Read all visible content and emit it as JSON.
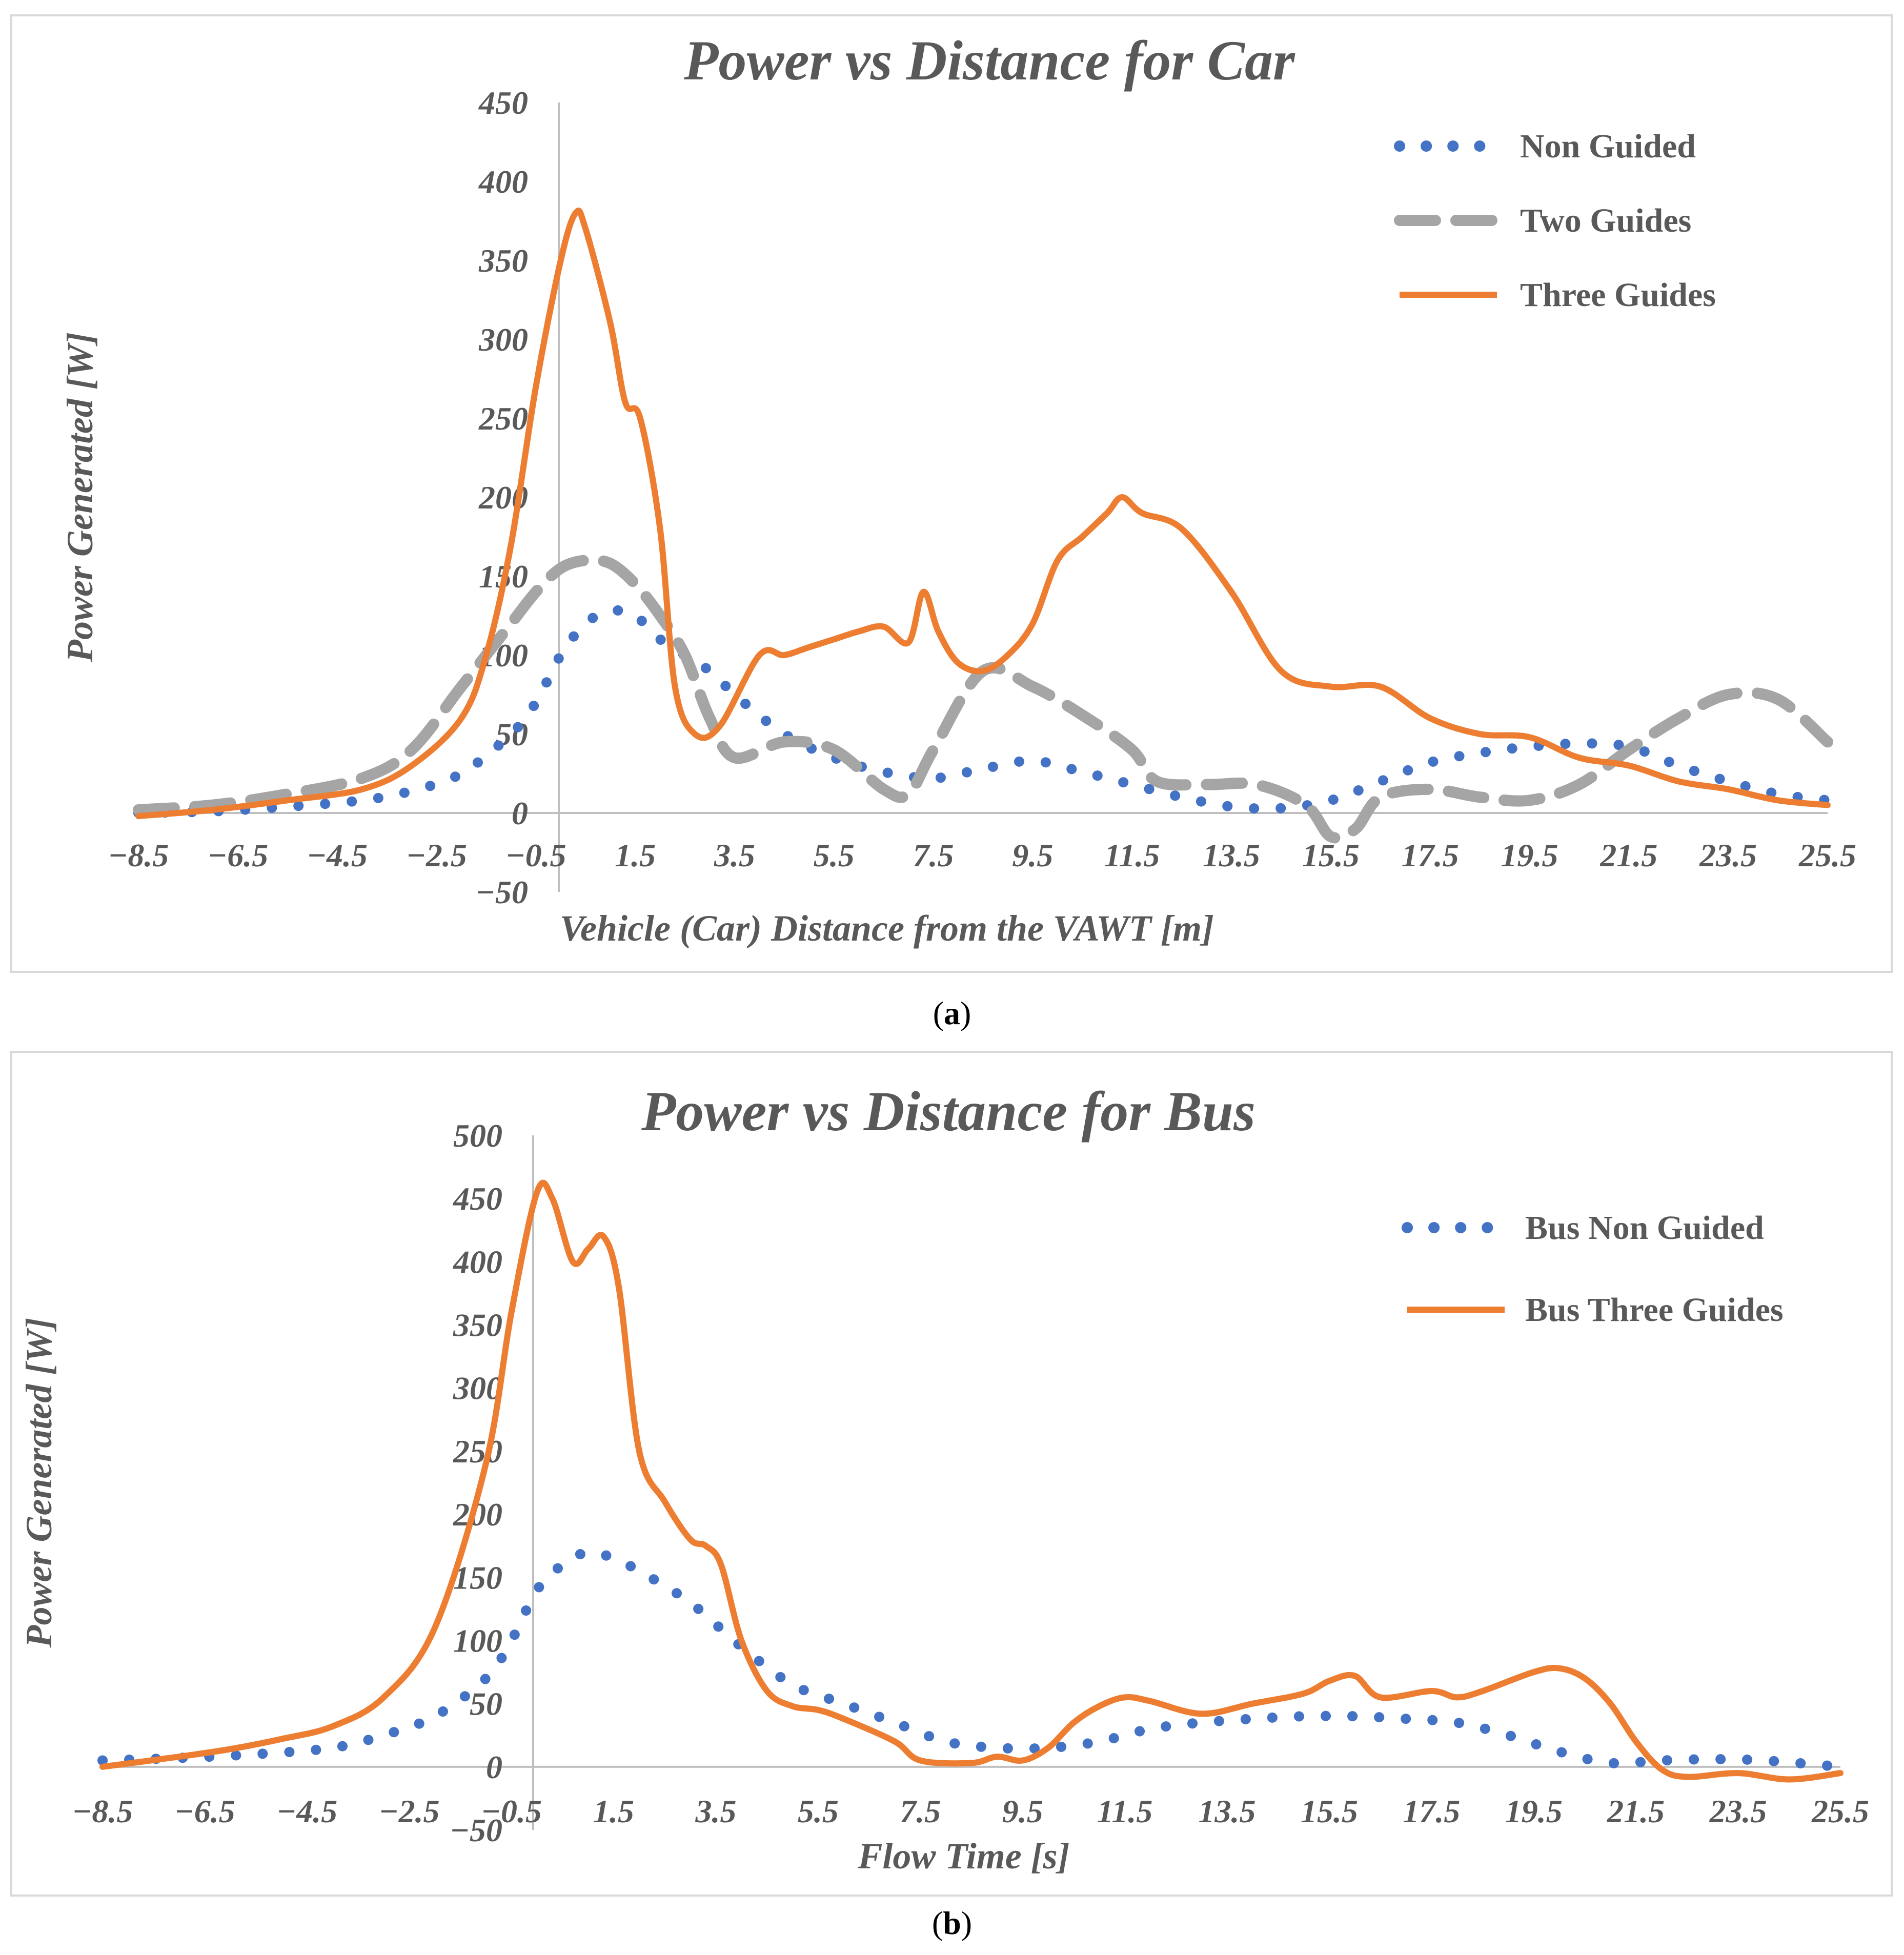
{
  "charts": [
    {
      "caption_letter": "a",
      "colors": {
        "Non Guided": "#4472c4",
        "Two Guides": "#a5a5a5",
        "Three Guides": "#ed7d31"
      },
      "chart_data": {
        "type": "line",
        "title": "Power vs Distance for Car",
        "xlabel": "Vehicle (Car) Distance from the VAWT [m]",
        "ylabel": "Power Generated [W]",
        "xlim": [
          -8.5,
          25.5
        ],
        "ylim": [
          -50,
          450
        ],
        "x_ticks": [
          -8.5,
          -6.5,
          -4.5,
          -2.5,
          -0.5,
          1.5,
          3.5,
          5.5,
          7.5,
          9.5,
          11.5,
          13.5,
          15.5,
          17.5,
          19.5,
          21.5,
          23.5,
          25.5
        ],
        "x_tick_labels": [
          "−8.5",
          "−6.5",
          "−4.5",
          "−2.5",
          "−0.5",
          "1.5",
          "3.5",
          "5.5",
          "7.5",
          "9.5",
          "11.5",
          "13.5",
          "15.5",
          "17.5",
          "19.5",
          "21.5",
          "23.5",
          "25.5"
        ],
        "y_ticks": [
          -50,
          0,
          50,
          100,
          150,
          200,
          250,
          300,
          350,
          400,
          450
        ],
        "y_tick_labels": [
          "−50",
          "0",
          "50",
          "100",
          "150",
          "200",
          "250",
          "300",
          "350",
          "400",
          "450"
        ],
        "legend_position": "top-right",
        "series": [
          {
            "name": "Non Guided",
            "style": "dotted",
            "points": [
              [
                -8.5,
                0
              ],
              [
                -7,
                1
              ],
              [
                -5.5,
                4
              ],
              [
                -4,
                8
              ],
              [
                -3,
                14
              ],
              [
                -2,
                25
              ],
              [
                -1,
                50
              ],
              [
                -0.5,
                70
              ],
              [
                0,
                100
              ],
              [
                0.5,
                120
              ],
              [
                1,
                128
              ],
              [
                1.5,
                125
              ],
              [
                2,
                110
              ],
              [
                3,
                90
              ],
              [
                3.5,
                75
              ],
              [
                4.5,
                50
              ],
              [
                5.5,
                35
              ],
              [
                6.5,
                26
              ],
              [
                7.5,
                22
              ],
              [
                8.5,
                28
              ],
              [
                9.5,
                33
              ],
              [
                10.5,
                26
              ],
              [
                11.5,
                18
              ],
              [
                12.5,
                10
              ],
              [
                13.5,
                4
              ],
              [
                14.5,
                3
              ],
              [
                15.5,
                8
              ],
              [
                16.5,
                20
              ],
              [
                17.5,
                32
              ],
              [
                18.5,
                38
              ],
              [
                19.5,
                42
              ],
              [
                20.5,
                44
              ],
              [
                21.5,
                42
              ],
              [
                22.5,
                30
              ],
              [
                23.5,
                20
              ],
              [
                24.5,
                12
              ],
              [
                25.5,
                8
              ]
            ]
          },
          {
            "name": "Two Guides",
            "style": "dashed",
            "points": [
              [
                -8.5,
                2
              ],
              [
                -7,
                5
              ],
              [
                -5.5,
                12
              ],
              [
                -4,
                22
              ],
              [
                -3,
                40
              ],
              [
                -2,
                80
              ],
              [
                -1,
                120
              ],
              [
                -0.5,
                140
              ],
              [
                0,
                155
              ],
              [
                0.5,
                160
              ],
              [
                1,
                158
              ],
              [
                1.5,
                145
              ],
              [
                2,
                125
              ],
              [
                2.5,
                100
              ],
              [
                3,
                60
              ],
              [
                3.5,
                35
              ],
              [
                4.5,
                45
              ],
              [
                5.5,
                40
              ],
              [
                6.5,
                15
              ],
              [
                7,
                12
              ],
              [
                7.5,
                40
              ],
              [
                8.5,
                90
              ],
              [
                9.5,
                80
              ],
              [
                10.5,
                62
              ],
              [
                11.5,
                40
              ],
              [
                12,
                20
              ],
              [
                13,
                18
              ],
              [
                14,
                18
              ],
              [
                15,
                5
              ],
              [
                15.5,
                -15
              ],
              [
                16,
                -10
              ],
              [
                16.5,
                10
              ],
              [
                17.5,
                15
              ],
              [
                18.5,
                10
              ],
              [
                19.5,
                8
              ],
              [
                20.5,
                18
              ],
              [
                21.5,
                40
              ],
              [
                22.5,
                60
              ],
              [
                23.5,
                75
              ],
              [
                24.5,
                72
              ],
              [
                25.5,
                45
              ]
            ]
          },
          {
            "name": "Three Guides",
            "style": "solid",
            "points": [
              [
                -8.5,
                -2
              ],
              [
                -7,
                2
              ],
              [
                -5.5,
                8
              ],
              [
                -4,
                15
              ],
              [
                -3,
                30
              ],
              [
                -2,
                60
              ],
              [
                -1.5,
                100
              ],
              [
                -1,
                170
              ],
              [
                -0.5,
                270
              ],
              [
                0,
                350
              ],
              [
                0.3,
                380
              ],
              [
                0.5,
                370
              ],
              [
                1,
                310
              ],
              [
                1.3,
                260
              ],
              [
                1.6,
                250
              ],
              [
                2,
                180
              ],
              [
                2.3,
                80
              ],
              [
                2.7,
                50
              ],
              [
                3.2,
                55
              ],
              [
                4,
                100
              ],
              [
                4.5,
                100
              ],
              [
                5,
                105
              ],
              [
                5.5,
                110
              ],
              [
                6,
                115
              ],
              [
                6.5,
                118
              ],
              [
                7,
                108
              ],
              [
                7.3,
                140
              ],
              [
                7.6,
                115
              ],
              [
                8,
                95
              ],
              [
                8.5,
                90
              ],
              [
                9,
                100
              ],
              [
                9.5,
                120
              ],
              [
                10,
                160
              ],
              [
                10.5,
                175
              ],
              [
                11,
                190
              ],
              [
                11.3,
                200
              ],
              [
                11.7,
                190
              ],
              [
                12.5,
                180
              ],
              [
                13.5,
                140
              ],
              [
                14.5,
                90
              ],
              [
                15.5,
                80
              ],
              [
                16.5,
                80
              ],
              [
                17.5,
                60
              ],
              [
                18.5,
                50
              ],
              [
                19.5,
                48
              ],
              [
                20.5,
                35
              ],
              [
                21.5,
                30
              ],
              [
                22.5,
                20
              ],
              [
                23.5,
                15
              ],
              [
                24.5,
                8
              ],
              [
                25.5,
                5
              ]
            ]
          }
        ]
      }
    },
    {
      "caption_letter": "b",
      "colors": {
        "Bus Non Guided": "#4472c4",
        "Bus Three Guides": "#ed7d31"
      },
      "chart_data": {
        "type": "line",
        "title": "Power vs Distance for Bus",
        "xlabel": "Flow Time [s]",
        "ylabel": "Power Generated [W]",
        "xlim": [
          -8.5,
          25.5
        ],
        "ylim": [
          -50,
          500
        ],
        "x_ticks": [
          -8.5,
          -6.5,
          -4.5,
          -2.5,
          -0.5,
          1.5,
          3.5,
          5.5,
          7.5,
          9.5,
          11.5,
          13.5,
          15.5,
          17.5,
          19.5,
          21.5,
          23.5,
          25.5
        ],
        "x_tick_labels": [
          "−8.5",
          "−6.5",
          "−4.5",
          "−2.5",
          "−0.5",
          "1.5",
          "3.5",
          "5.5",
          "7.5",
          "9.5",
          "11.5",
          "13.5",
          "15.5",
          "17.5",
          "19.5",
          "21.5",
          "23.5",
          "25.5"
        ],
        "y_ticks": [
          -50,
          0,
          50,
          100,
          150,
          200,
          250,
          300,
          350,
          400,
          450,
          500
        ],
        "y_tick_labels": [
          "−50",
          "0",
          "50",
          "100",
          "150",
          "200",
          "250",
          "300",
          "350",
          "400",
          "450",
          "500"
        ],
        "legend_position": "top-right",
        "series": [
          {
            "name": "Bus Non Guided",
            "style": "dotted",
            "points": [
              [
                -8.5,
                5
              ],
              [
                -7,
                7
              ],
              [
                -5.5,
                10
              ],
              [
                -4,
                15
              ],
              [
                -3,
                25
              ],
              [
                -2,
                40
              ],
              [
                -1,
                70
              ],
              [
                -0.5,
                100
              ],
              [
                0,
                140
              ],
              [
                0.5,
                160
              ],
              [
                1,
                170
              ],
              [
                1.5,
                165
              ],
              [
                2,
                155
              ],
              [
                3,
                130
              ],
              [
                4,
                95
              ],
              [
                5,
                65
              ],
              [
                6,
                50
              ],
              [
                7,
                35
              ],
              [
                8,
                20
              ],
              [
                9,
                15
              ],
              [
                10,
                15
              ],
              [
                11,
                20
              ],
              [
                12,
                30
              ],
              [
                13,
                35
              ],
              [
                14,
                38
              ],
              [
                15,
                40
              ],
              [
                16,
                40
              ],
              [
                17,
                38
              ],
              [
                18,
                35
              ],
              [
                19,
                25
              ],
              [
                20,
                12
              ],
              [
                21,
                3
              ],
              [
                22,
                5
              ],
              [
                23,
                6
              ],
              [
                24,
                5
              ],
              [
                25.5,
                0
              ]
            ]
          },
          {
            "name": "Bus Three Guides",
            "style": "solid",
            "points": [
              [
                -8.5,
                0
              ],
              [
                -7,
                8
              ],
              [
                -6,
                14
              ],
              [
                -5,
                22
              ],
              [
                -4,
                32
              ],
              [
                -3,
                55
              ],
              [
                -2,
                110
              ],
              [
                -1,
                240
              ],
              [
                -0.5,
                360
              ],
              [
                0,
                455
              ],
              [
                0.3,
                450
              ],
              [
                0.7,
                400
              ],
              [
                1,
                410
              ],
              [
                1.3,
                420
              ],
              [
                1.6,
                380
              ],
              [
                2,
                250
              ],
              [
                2.5,
                210
              ],
              [
                3,
                180
              ],
              [
                3.3,
                175
              ],
              [
                3.6,
                160
              ],
              [
                4,
                100
              ],
              [
                4.5,
                60
              ],
              [
                5,
                48
              ],
              [
                5.5,
                45
              ],
              [
                6,
                38
              ],
              [
                7,
                20
              ],
              [
                7.5,
                5
              ],
              [
                8.5,
                3
              ],
              [
                9,
                8
              ],
              [
                9.5,
                5
              ],
              [
                10,
                15
              ],
              [
                10.5,
                35
              ],
              [
                11,
                48
              ],
              [
                11.5,
                55
              ],
              [
                12,
                52
              ],
              [
                13,
                42
              ],
              [
                14,
                50
              ],
              [
                15,
                58
              ],
              [
                15.5,
                68
              ],
              [
                16,
                72
              ],
              [
                16.5,
                55
              ],
              [
                17.5,
                60
              ],
              [
                18,
                55
              ],
              [
                18.5,
                60
              ],
              [
                19.5,
                75
              ],
              [
                20,
                78
              ],
              [
                20.5,
                70
              ],
              [
                21,
                50
              ],
              [
                21.5,
                20
              ],
              [
                22,
                -2
              ],
              [
                22.5,
                -8
              ],
              [
                23.5,
                -5
              ],
              [
                24.5,
                -10
              ],
              [
                25.5,
                -5
              ]
            ]
          }
        ]
      }
    }
  ]
}
